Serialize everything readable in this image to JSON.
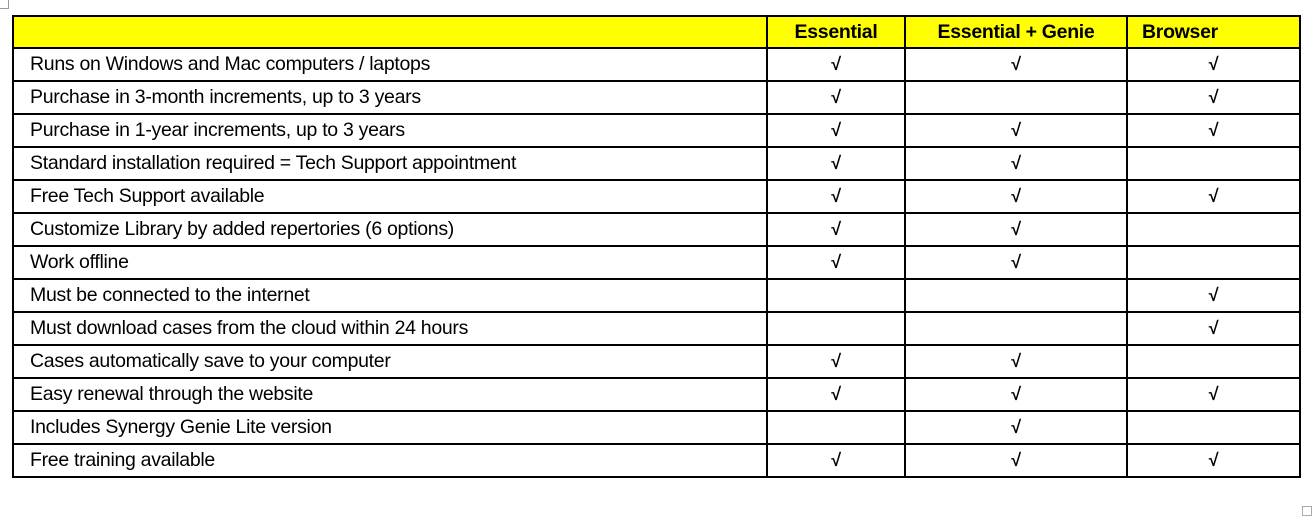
{
  "table": {
    "headers": [
      "",
      "Essential",
      "Essential + Genie",
      "Browser"
    ],
    "check_symbol": "√",
    "rows": [
      {
        "feature": "Runs on Windows and Mac computers / laptops",
        "essential": "√",
        "genie": "√",
        "browser": "√"
      },
      {
        "feature": "Purchase in 3-month increments, up to 3 years",
        "essential": "√",
        "genie": "",
        "browser": "√"
      },
      {
        "feature": "Purchase in 1-year increments, up to 3 years",
        "essential": "√",
        "genie": "√",
        "browser": "√"
      },
      {
        "feature": "Standard installation required = Tech Support appointment",
        "essential": "√",
        "genie": "√",
        "browser": ""
      },
      {
        "feature": "Free Tech Support available",
        "essential": "√",
        "genie": "√",
        "browser": "√"
      },
      {
        "feature": "Customize Library by added repertories (6 options)",
        "essential": "√",
        "genie": "√",
        "browser": ""
      },
      {
        "feature": "Work offline",
        "essential": "√",
        "genie": "√",
        "browser": ""
      },
      {
        "feature": "Must be connected to the internet",
        "essential": "",
        "genie": "",
        "browser": "√"
      },
      {
        "feature": "Must download cases from the cloud within 24 hours",
        "essential": "",
        "genie": "",
        "browser": "√"
      },
      {
        "feature": "Cases automatically save to your computer",
        "essential": "√",
        "genie": "√",
        "browser": ""
      },
      {
        "feature": "Easy renewal through the website",
        "essential": "√",
        "genie": "√",
        "browser": "√"
      },
      {
        "feature": "Includes Synergy Genie Lite version",
        "essential": "",
        "genie": "√",
        "browser": ""
      },
      {
        "feature": "Free training available",
        "essential": "√",
        "genie": "√",
        "browser": "√"
      }
    ],
    "header_color": "#ffff00"
  }
}
